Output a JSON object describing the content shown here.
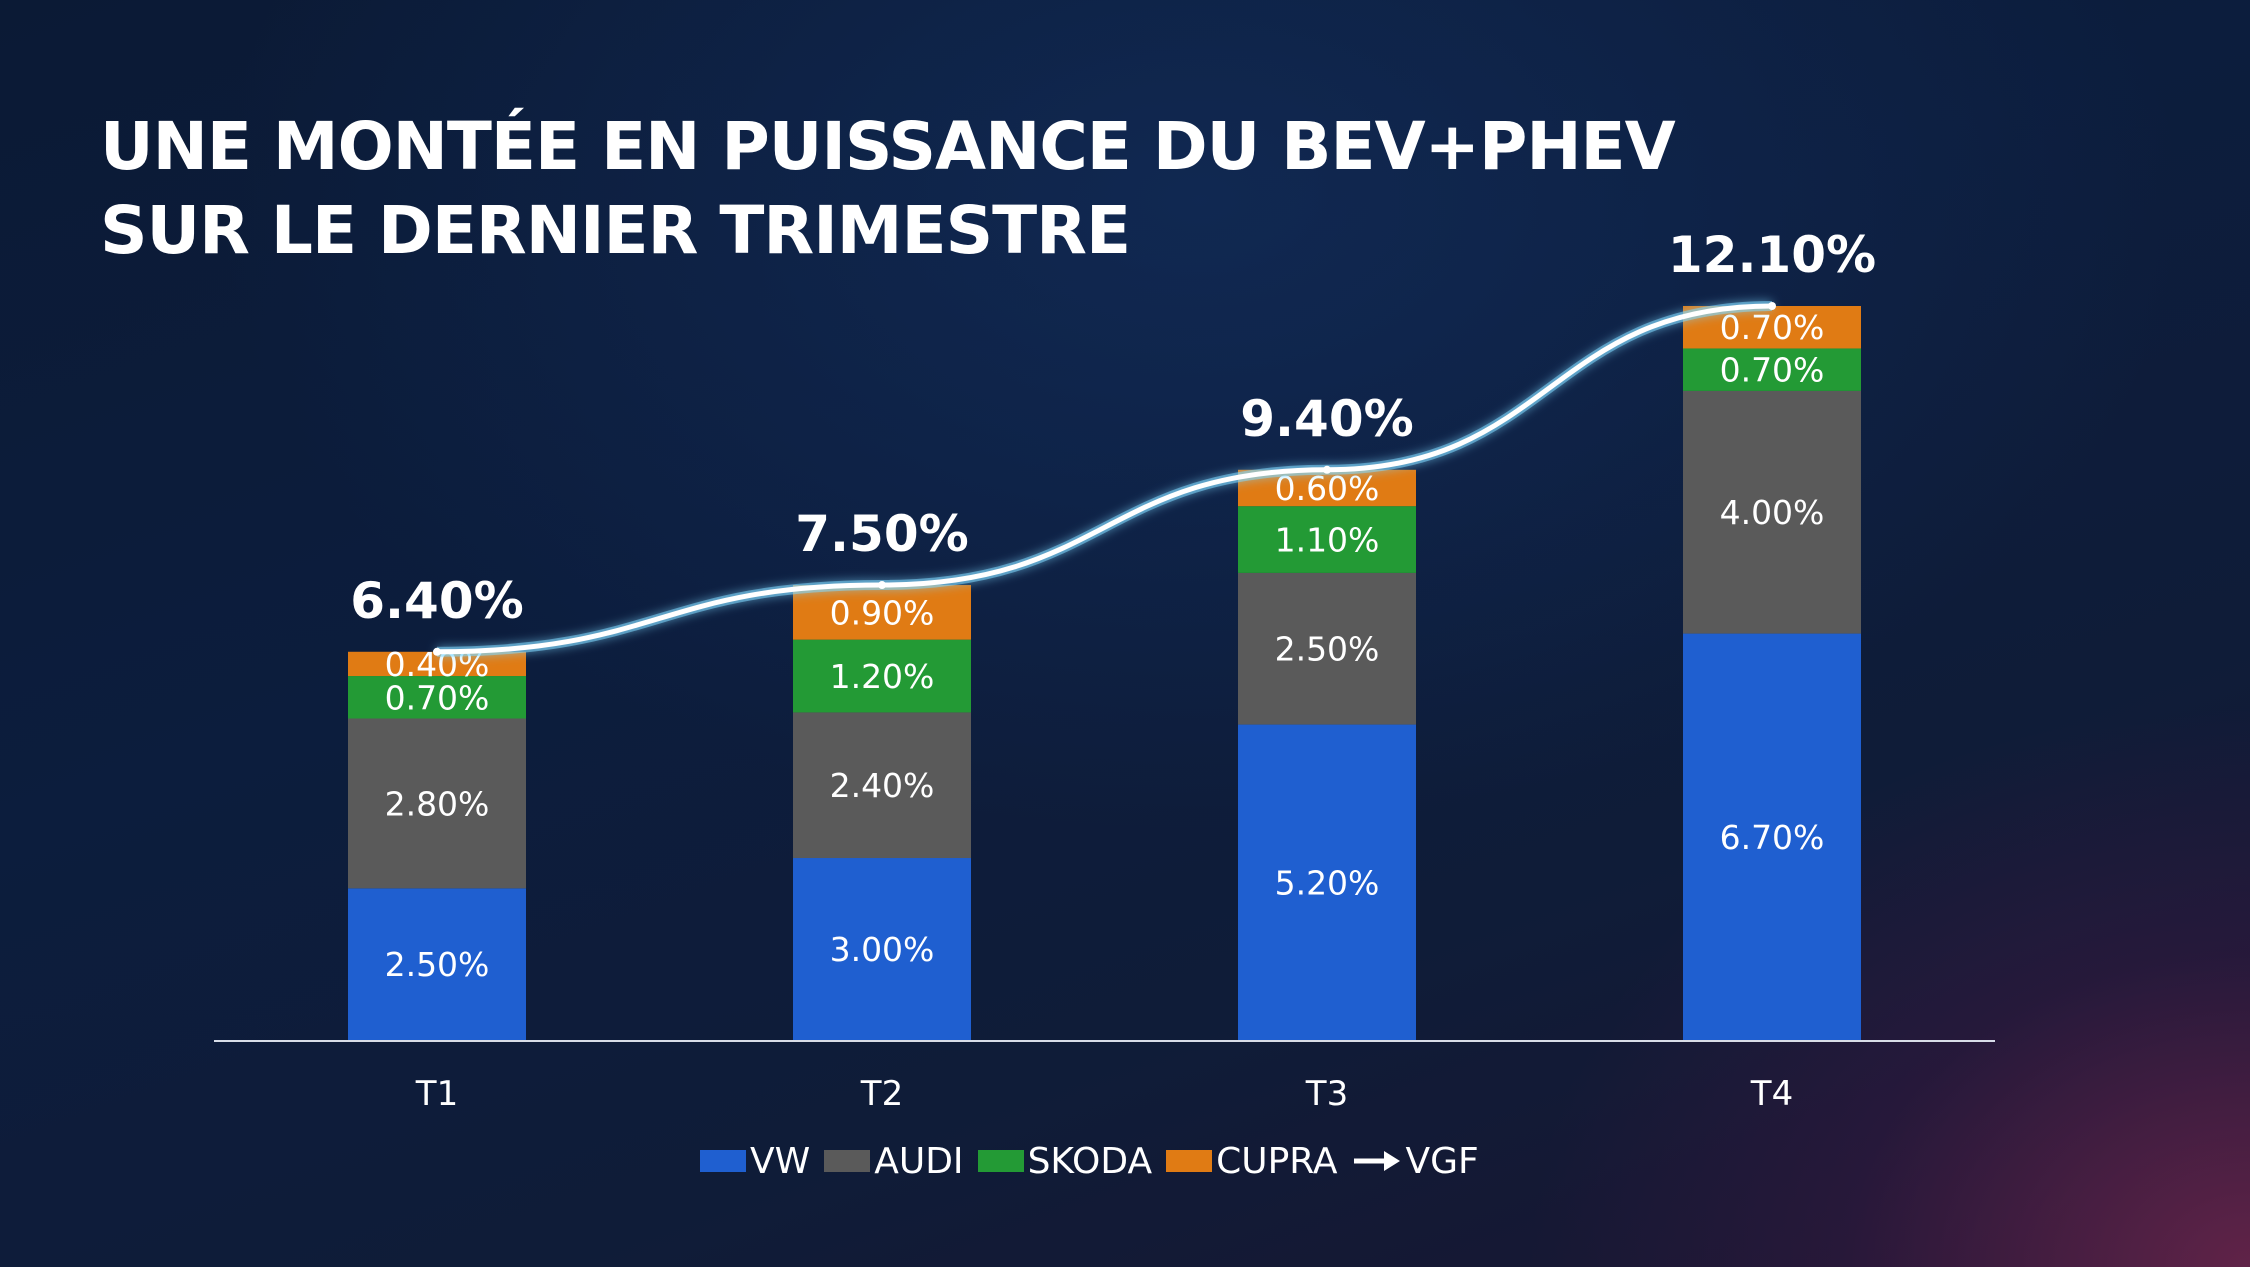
{
  "title": {
    "line1": "UNE MONTÉE EN PUISSANCE DU BEV+PHEV",
    "line2": "SUR LE DERNIER TRIMESTRE"
  },
  "colors": {
    "VW": "#1f5fd0",
    "AUDI": "#5a5a5a",
    "SKODA": "#239a35",
    "CUPRA": "#e07b14",
    "VGF": "#ffffff"
  },
  "chart_data": {
    "type": "bar",
    "stacked": true,
    "categories": [
      "T1",
      "T2",
      "T3",
      "T4"
    ],
    "series": [
      {
        "name": "VW",
        "values": [
          2.5,
          3.0,
          5.2,
          6.7
        ],
        "labels": [
          "2.50%",
          "3.00%",
          "5.20%",
          "6.70%"
        ]
      },
      {
        "name": "AUDI",
        "values": [
          2.8,
          2.4,
          2.5,
          4.0
        ],
        "labels": [
          "2.80%",
          "2.40%",
          "2.50%",
          "4.00%"
        ]
      },
      {
        "name": "SKODA",
        "values": [
          0.7,
          1.2,
          1.1,
          0.7
        ],
        "labels": [
          "0.70%",
          "1.20%",
          "1.10%",
          "0.70%"
        ]
      },
      {
        "name": "CUPRA",
        "values": [
          0.4,
          0.9,
          0.6,
          0.7
        ],
        "labels": [
          "0.40%",
          "0.90%",
          "0.60%",
          "0.70%"
        ]
      }
    ],
    "line_series": {
      "name": "VGF",
      "values": [
        6.4,
        7.5,
        9.4,
        12.1
      ],
      "labels": [
        "6.40%",
        "7.50%",
        "9.40%",
        "12.10%"
      ]
    },
    "ylim": [
      0,
      12.1
    ],
    "legend": "bottom",
    "grid": false
  }
}
